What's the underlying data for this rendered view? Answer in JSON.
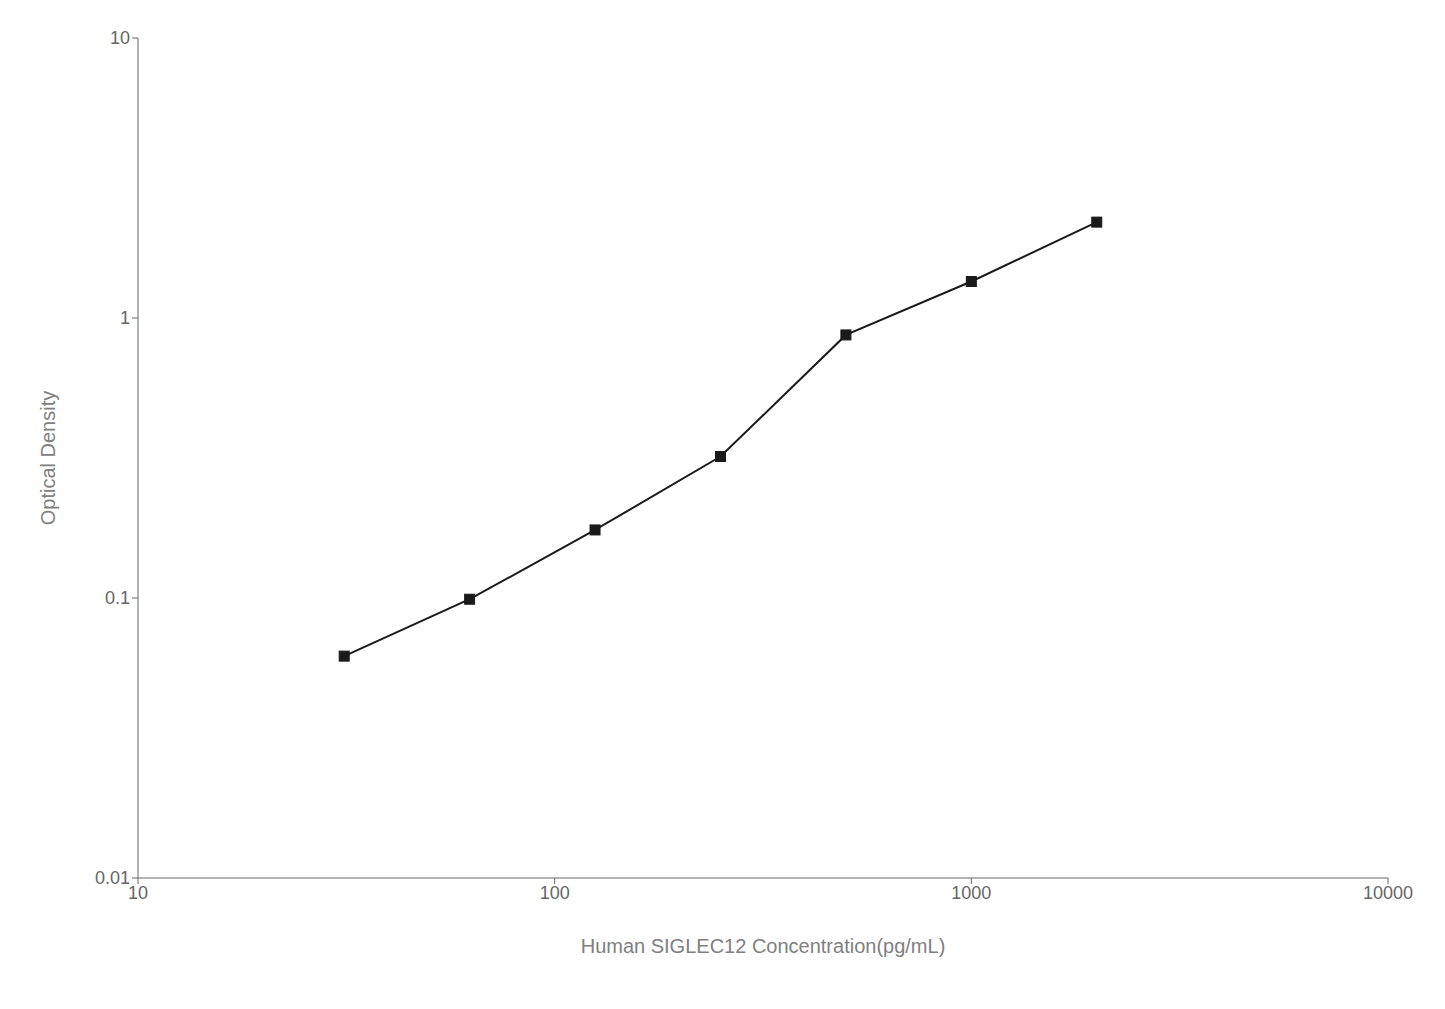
{
  "chart_data": {
    "type": "line",
    "x": [
      31.25,
      62.5,
      125,
      250,
      500,
      1000,
      2000
    ],
    "values": [
      0.062,
      0.099,
      0.175,
      0.32,
      0.87,
      1.35,
      2.2
    ],
    "xlabel": "Human SIGLEC12 Concentration(pg/mL)",
    "ylabel": "Optical Density",
    "xlim": [
      10,
      10000
    ],
    "ylim": [
      0.01,
      10
    ],
    "xticks": [
      10,
      100,
      1000,
      10000
    ],
    "yticks": [
      0.01,
      0.1,
      1,
      10
    ],
    "log": true,
    "grid": false,
    "color": "#1a1a1a",
    "marker": "square"
  }
}
